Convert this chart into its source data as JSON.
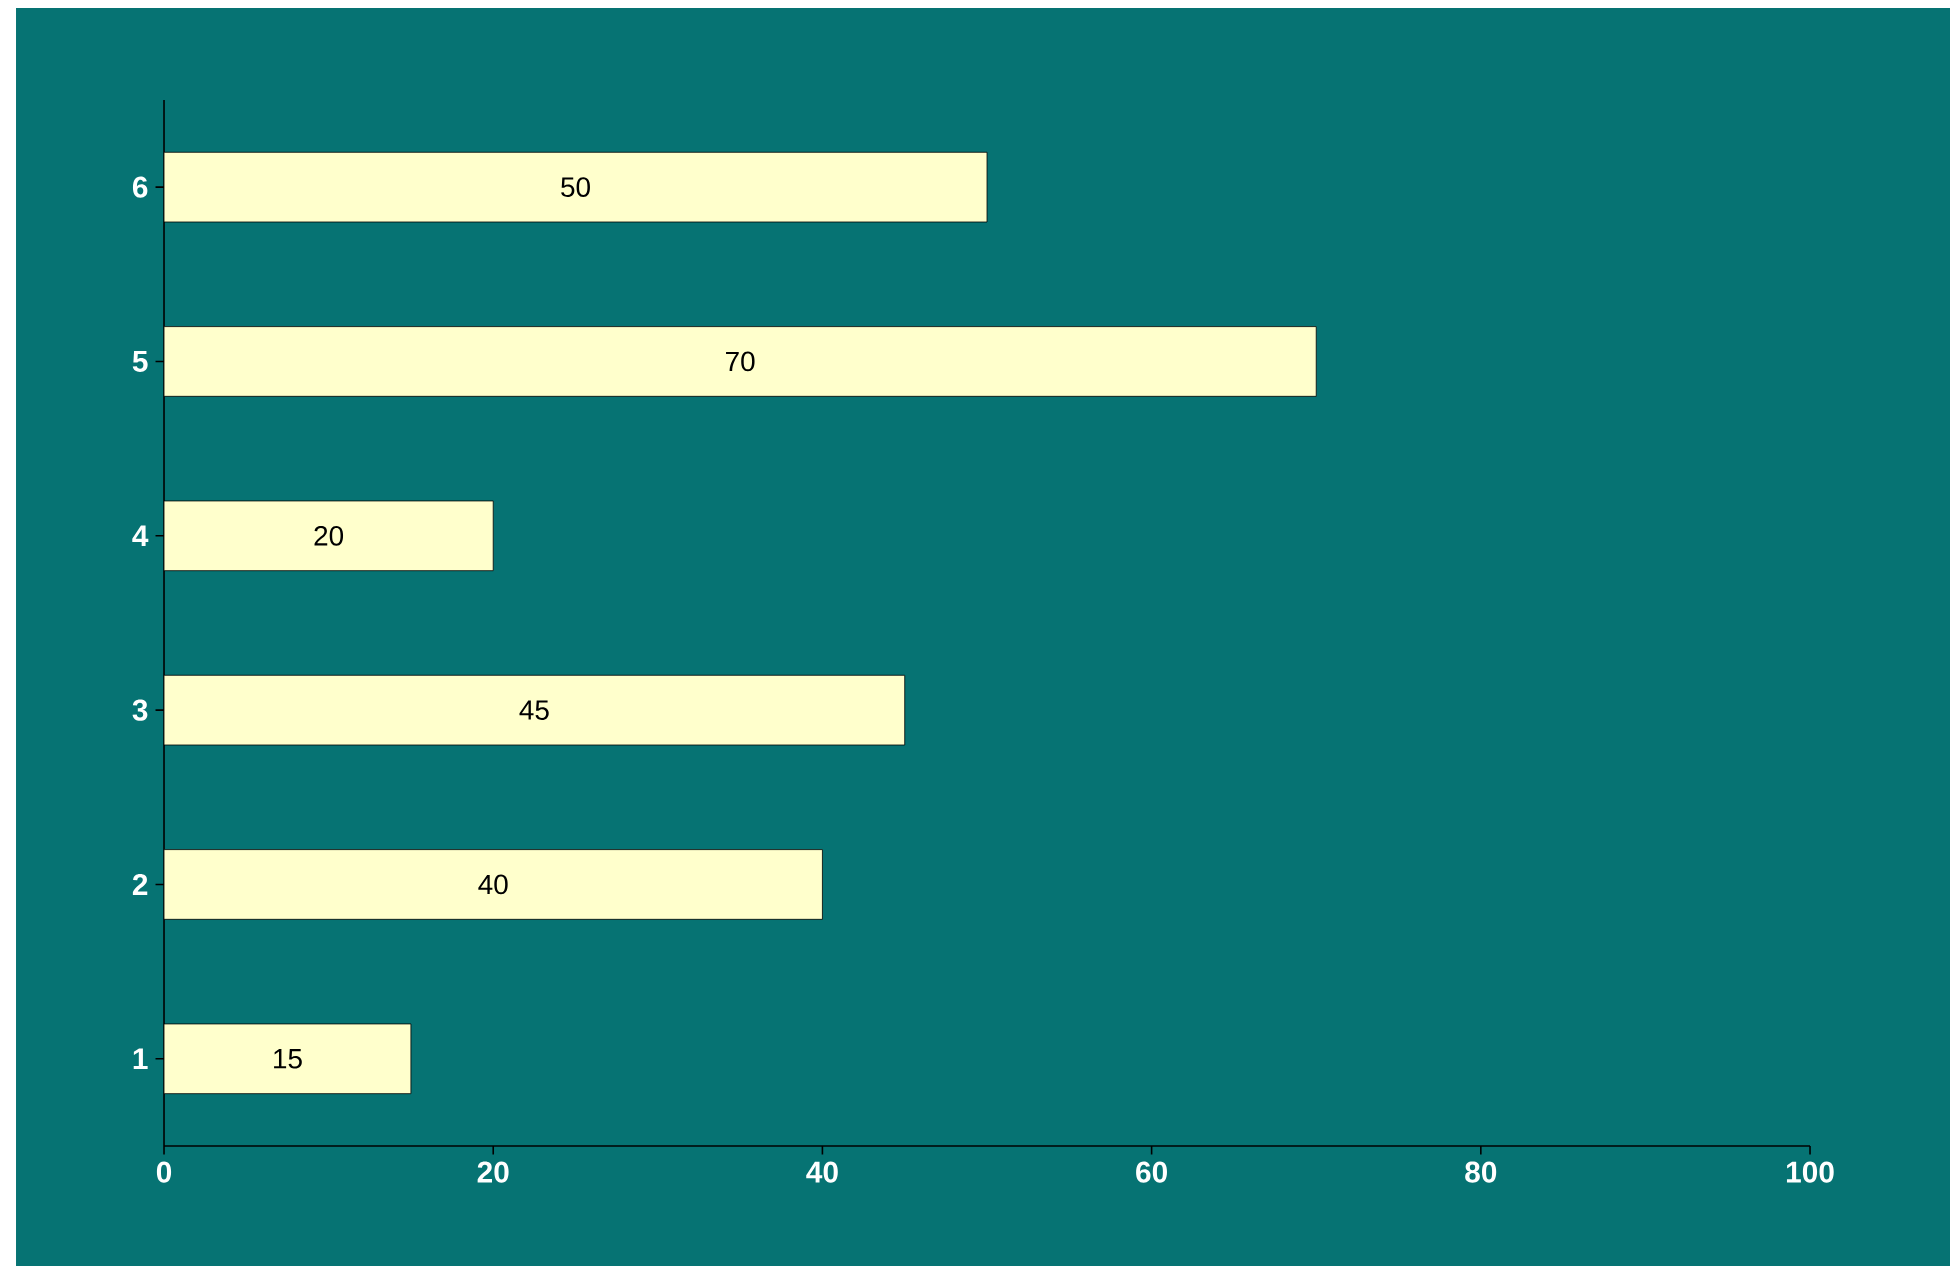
{
  "chart_data": {
    "type": "bar",
    "orientation": "horizontal",
    "categories": [
      "6",
      "5",
      "4",
      "3",
      "2",
      "1"
    ],
    "values": [
      50,
      70,
      20,
      45,
      40,
      15
    ],
    "color": "#ffffcc",
    "data_labels": true,
    "xlim": [
      0,
      100
    ],
    "xticks": [
      0,
      20,
      40,
      60,
      80,
      100
    ]
  }
}
